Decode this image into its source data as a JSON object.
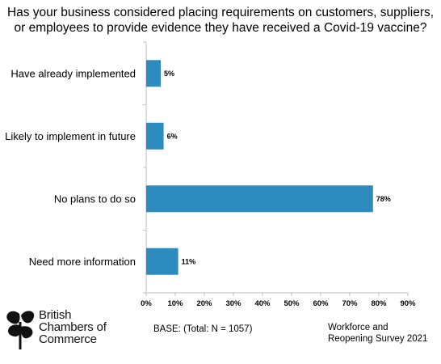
{
  "title": {
    "line1": "Has your business considered placing requirements on customers, suppliers,",
    "line2": "or employees to provide evidence they have received a Covid-19 vaccine?"
  },
  "chart_data": {
    "type": "bar",
    "orientation": "horizontal",
    "categories": [
      "Have already implemented",
      "Likely to implement in future",
      "No plans to do so",
      "Need more information"
    ],
    "values": [
      5,
      6,
      78,
      11
    ],
    "value_labels": [
      "5%",
      "6%",
      "78%",
      "11%"
    ],
    "xlim": [
      0,
      90
    ],
    "xticks": [
      "0%",
      "10%",
      "20%",
      "30%",
      "40%",
      "50%",
      "60%",
      "70%",
      "80%",
      "90%"
    ],
    "grid": false,
    "legend": "none",
    "bar_color": "#2e8bc0"
  },
  "logo": {
    "line1": "British",
    "line2": "Chambers of",
    "line3": "Commerce"
  },
  "footer": {
    "base": "BASE: (Total: N = 1057)",
    "survey_line1": "Workforce and",
    "survey_line2": "Reopening Survey 2021"
  }
}
